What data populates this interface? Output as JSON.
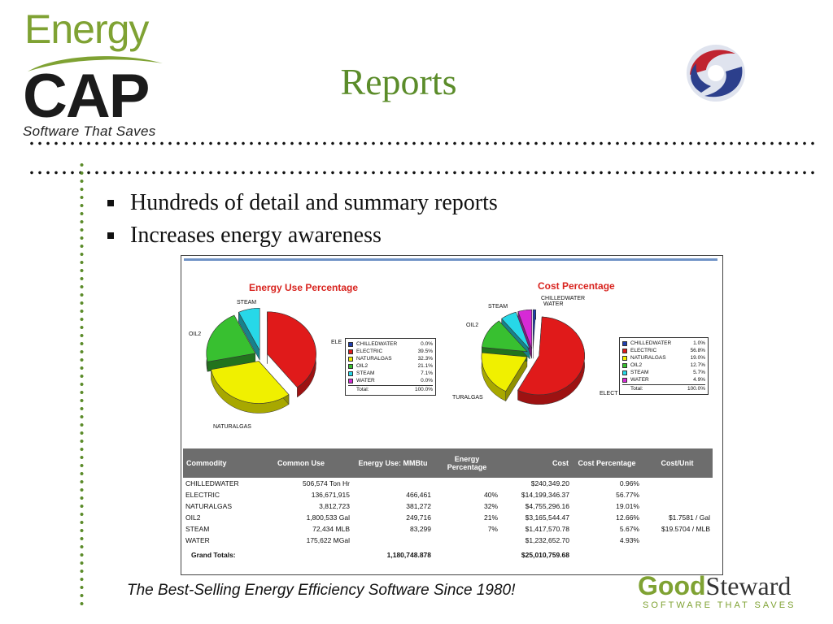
{
  "logo": {
    "energy": "Energy",
    "cap": "CAP",
    "tagline": "Software That Saves"
  },
  "slide": {
    "title": "Reports",
    "bullets": [
      "Hundreds of detail and summary reports",
      "Increases energy awareness"
    ],
    "footer": "The Best-Selling Energy Efficiency Software Since 1980!"
  },
  "goodsteward": {
    "good": "Good",
    "steward": "Steward",
    "tagline": "SOFTWARE THAT SAVES"
  },
  "colors": {
    "chilledwater": "#1f3fb0",
    "electric": "#e01a1a",
    "naturalgas": "#f0f000",
    "oil2": "#38c030",
    "steam": "#27d8e8",
    "water": "#d62ad6"
  },
  "chart_data": [
    {
      "type": "pie",
      "title": "Energy Use Percentage",
      "slices": [
        {
          "label": "CHILLEDWATER",
          "value": 0.0,
          "pct": "0.0%",
          "color": "#1f3fb0"
        },
        {
          "label": "ELECTRIC",
          "value": 39.5,
          "pct": "39.5%",
          "color": "#e01a1a"
        },
        {
          "label": "NATURALGAS",
          "value": 32.3,
          "pct": "32.3%",
          "color": "#f0f000"
        },
        {
          "label": "OIL2",
          "value": 21.1,
          "pct": "21.1%",
          "color": "#38c030"
        },
        {
          "label": "STEAM",
          "value": 7.1,
          "pct": "7.1%",
          "color": "#27d8e8"
        },
        {
          "label": "WATER",
          "value": 0.0,
          "pct": "0.0%",
          "color": "#d62ad6"
        }
      ],
      "total_label": "Total:",
      "total_value": "100.0%",
      "callouts": [
        "STEAM",
        "OIL2",
        "ELE",
        "NATURALGAS"
      ]
    },
    {
      "type": "pie",
      "title": "Cost Percentage",
      "slices": [
        {
          "label": "CHILLEDWATER",
          "value": 1.0,
          "pct": "1.0%",
          "color": "#1f3fb0"
        },
        {
          "label": "ELECTRIC",
          "value": 56.8,
          "pct": "56.8%",
          "color": "#e01a1a"
        },
        {
          "label": "NATURALGAS",
          "value": 19.0,
          "pct": "19.0%",
          "color": "#f0f000"
        },
        {
          "label": "OIL2",
          "value": 12.7,
          "pct": "12.7%",
          "color": "#38c030"
        },
        {
          "label": "STEAM",
          "value": 5.7,
          "pct": "5.7%",
          "color": "#27d8e8"
        },
        {
          "label": "WATER",
          "value": 4.9,
          "pct": "4.9%",
          "color": "#d62ad6"
        }
      ],
      "total_label": "Total:",
      "total_value": "100.0%",
      "callouts": [
        "CHILLEDWATER",
        "WATER",
        "STEAM",
        "OIL2",
        "ELECT",
        "TURALGAS"
      ]
    },
    {
      "type": "table",
      "columns": [
        "Commodity",
        "Common Use",
        "Energy Use: MMBtu",
        "Energy Percentage",
        "Cost",
        "Cost Percentage",
        "Cost/Unit"
      ],
      "rows": [
        [
          "CHILLEDWATER",
          "506,574 Ton Hr",
          "",
          "",
          "$240,349.20",
          "0.96%",
          ""
        ],
        [
          "ELECTRIC",
          "136,671,915",
          "466,461",
          "40%",
          "$14,199,346.37",
          "56.77%",
          ""
        ],
        [
          "NATURALGAS",
          "3,812,723",
          "381,272",
          "32%",
          "$4,755,296.16",
          "19.01%",
          ""
        ],
        [
          "OIL2",
          "1,800,533 Gal",
          "249,716",
          "21%",
          "$3,165,544.47",
          "12.66%",
          "$1.7581 / Gal"
        ],
        [
          "STEAM",
          "72,434 MLB",
          "83,299",
          "7%",
          "$1,417,570.78",
          "5.67%",
          "$19.5704 / MLB"
        ],
        [
          "WATER",
          "175,622 MGal",
          "",
          "",
          "$1,232,652.70",
          "4.93%",
          ""
        ]
      ],
      "totals_label": "Grand Totals:",
      "totals_energy": "1,180,748.878",
      "totals_cost": "$25,010,759.68"
    }
  ]
}
